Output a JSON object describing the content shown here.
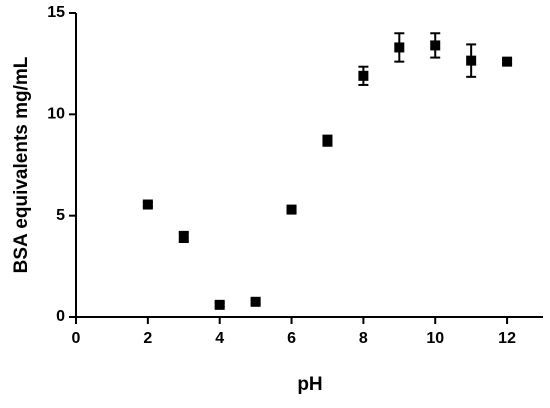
{
  "chart_data": {
    "type": "scatter",
    "x_label": "pH",
    "y_label": "BSA equivalents mg/mL",
    "series": [
      {
        "color": "#000000",
        "x": [
          2,
          3,
          4,
          5,
          6,
          7,
          8,
          9,
          10,
          11,
          12
        ],
        "values": [
          5.55,
          3.95,
          0.6,
          0.75,
          5.3,
          8.7,
          11.9,
          13.3,
          13.4,
          12.65,
          12.6
        ],
        "errors": [
          0.1,
          0.25,
          0.1,
          0.1,
          0.1,
          0.25,
          0.45,
          0.7,
          0.6,
          0.8,
          0.1
        ]
      }
    ],
    "xlim": [
      0,
      13
    ],
    "xticks": [
      0,
      2,
      4,
      6,
      8,
      10,
      12
    ],
    "ylim": [
      0,
      15
    ],
    "yticks": [
      0,
      5,
      10,
      15
    ]
  }
}
